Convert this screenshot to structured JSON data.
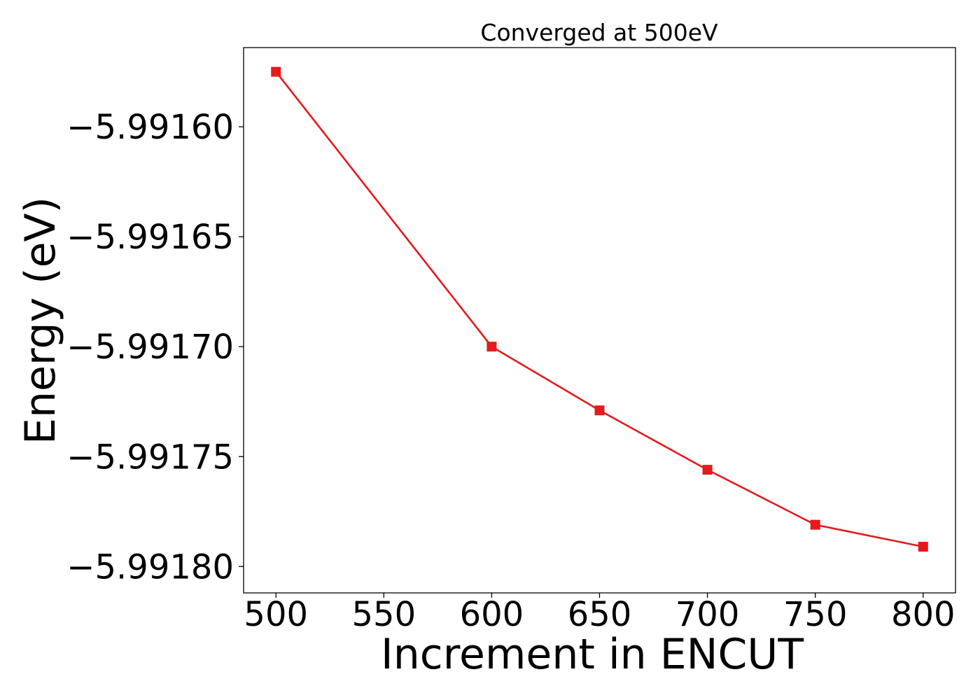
{
  "chart_data": {
    "type": "line",
    "title": "Converged at 500eV",
    "xlabel": "Increment in ENCUT",
    "ylabel": "Energy (eV)",
    "x": [
      500,
      600,
      650,
      700,
      750,
      800
    ],
    "series": [
      {
        "values": [
          -5.991575,
          -5.9917,
          -5.991729,
          -5.991756,
          -5.991781,
          -5.991791
        ],
        "color": "#e41a1c",
        "marker": "square"
      }
    ],
    "xlim": [
      485,
      815
    ],
    "ylim": [
      -5.991812,
      -5.991564
    ],
    "xticks": [
      500,
      550,
      600,
      650,
      700,
      750,
      800
    ],
    "xtick_labels": [
      "500",
      "550",
      "600",
      "650",
      "700",
      "750",
      "800"
    ],
    "yticks": [
      -5.9916,
      -5.99165,
      -5.9917,
      -5.99175,
      -5.9918
    ],
    "ytick_labels": [
      "−5.99160",
      "−5.99165",
      "−5.99170",
      "−5.99175",
      "−5.99180"
    ],
    "grid": false,
    "legend": "none"
  }
}
